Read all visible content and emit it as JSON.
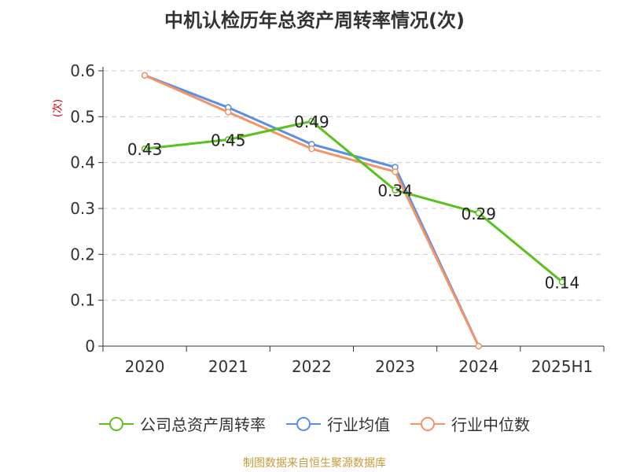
{
  "chart_data": {
    "type": "line",
    "title": "中机认检历年总资产周转率情况(次)",
    "ylabel": "(次)",
    "categories": [
      "2020",
      "2021",
      "2022",
      "2023",
      "2024",
      "2025H1"
    ],
    "ylim": [
      0,
      0.6
    ],
    "yticks": [
      "0",
      "0.1",
      "0.2",
      "0.3",
      "0.4",
      "0.5",
      "0.6"
    ],
    "grid": true,
    "legend_position": "bottom",
    "series": [
      {
        "name": "公司总资产周转率",
        "color": "#5ac21e",
        "values": [
          0.43,
          0.45,
          0.49,
          0.34,
          0.29,
          0.14
        ],
        "labels": [
          "0.43",
          "0.45",
          "0.49",
          "0.34",
          "0.29",
          "0.14"
        ]
      },
      {
        "name": "行业均值",
        "color": "#5b8ee6",
        "values": [
          0.59,
          0.52,
          0.44,
          0.39,
          0.0,
          null
        ]
      },
      {
        "name": "行业中位数",
        "color": "#f29466",
        "values": [
          0.59,
          0.51,
          0.43,
          0.38,
          0.0,
          null
        ]
      }
    ]
  },
  "source_text": "制图数据来自恒生聚源数据库"
}
